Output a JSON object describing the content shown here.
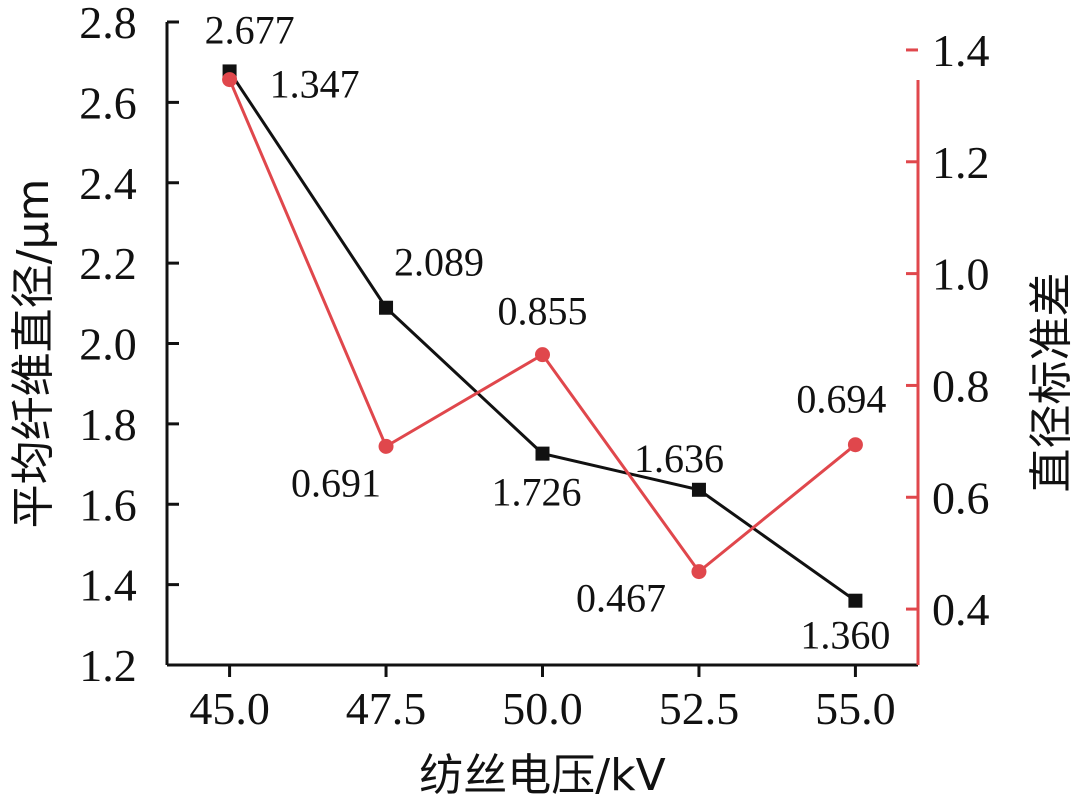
{
  "chart_data": {
    "type": "line",
    "x": [
      45.0,
      47.5,
      50.0,
      52.5,
      55.0
    ],
    "x_tick_labels": [
      "45.0",
      "47.5",
      "50.0",
      "52.5",
      "55.0"
    ],
    "xlabel": "纺丝电压/kV",
    "xlim": [
      44.0,
      56.0
    ],
    "ylabel_left": "平均纤维直径/μm",
    "ylim_left": [
      1.2,
      2.8
    ],
    "y_ticks_left": [
      "1.2",
      "1.4",
      "1.6",
      "1.8",
      "2.0",
      "2.2",
      "2.4",
      "2.6",
      "2.8"
    ],
    "ylabel_right": "直径标准差",
    "ylim_right": [
      0.3,
      1.45
    ],
    "y_ticks_right": [
      "0.4",
      "0.6",
      "0.8",
      "1.0",
      "1.2",
      "1.4"
    ],
    "series": [
      {
        "axis": "left",
        "color": "#111111",
        "marker": "square",
        "values": [
          2.677,
          2.089,
          1.726,
          1.636,
          1.36
        ],
        "labels": [
          "2.677",
          "2.089",
          "1.726",
          "1.636",
          "1.360"
        ]
      },
      {
        "axis": "right",
        "color": "#e0474c",
        "marker": "circle",
        "values": [
          1.347,
          0.691,
          0.855,
          0.467,
          0.694
        ],
        "labels": [
          "1.347",
          "0.691",
          "0.855",
          "0.467",
          "0.694"
        ]
      }
    ],
    "grid": false,
    "legend": "none"
  }
}
